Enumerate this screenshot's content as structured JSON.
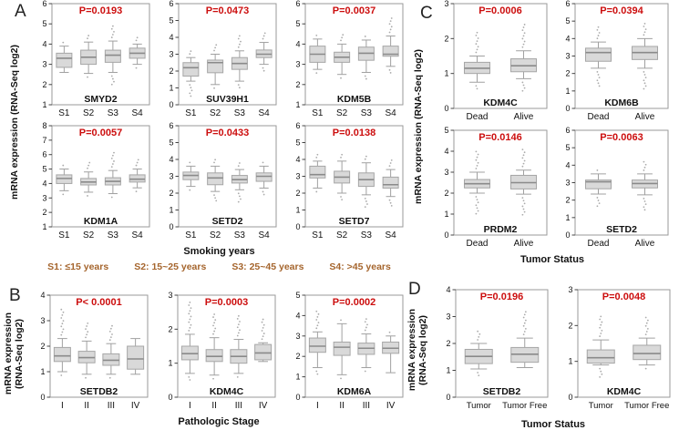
{
  "colors": {
    "p_value": "#cc0e0e",
    "legend_text": "#a5652d",
    "box_fill": "#d9d9d9",
    "box_stroke": "#a6a6a6",
    "median": "#8a8a8a",
    "whisker": "#a0a0a0",
    "outlier": "#ababab",
    "frame": "#9a9a9a",
    "tick": "#444444",
    "text": "#111111"
  },
  "panels": {
    "A": {
      "label": "A",
      "ylabel": "mRNA expression (RNA-Seq log2)",
      "xlabel": "Smoking years"
    },
    "B": {
      "label": "B",
      "ylabel_line1": "mRNA expression",
      "ylabel_line2": "(RNA-Seq log2)",
      "xlabel": "Pathologic Stage"
    },
    "C": {
      "label": "C",
      "ylabel": "mRNA expression (RNA-Seq log2)",
      "xlabel": "Tumor Status"
    },
    "D": {
      "label": "D",
      "ylabel_line1": "mRNA expression",
      "ylabel_line2": "(RNA-Seq log2)",
      "xlabel": "Tumor Status"
    }
  },
  "legend": {
    "items": [
      "S1: ≤15 years",
      "S2: 15~25 years",
      "S3: 25~45 years",
      "S4: >45 years"
    ]
  },
  "chart_data": [
    {
      "type": "box",
      "panel": "A",
      "gene": "SMYD2",
      "p_label": "P=0.0193",
      "ylim": [
        1,
        6
      ],
      "categories": [
        "S1",
        "S2",
        "S3",
        "S4"
      ],
      "boxes": [
        {
          "whisker_low": 2.6,
          "q1": 2.85,
          "median": 3.3,
          "q3": 3.55,
          "whisker_high": 3.9,
          "out_hi": 4.15,
          "out_lo": null
        },
        {
          "whisker_low": 2.55,
          "q1": 3.0,
          "median": 3.35,
          "q3": 3.7,
          "whisker_high": 4.1,
          "out_hi": 4.45,
          "out_lo": 2.45
        },
        {
          "whisker_low": 2.6,
          "q1": 3.1,
          "median": 3.45,
          "q3": 3.7,
          "whisker_high": 4.15,
          "out_hi": 4.9,
          "out_lo": 2.0
        },
        {
          "whisker_low": 3.0,
          "q1": 3.3,
          "median": 3.55,
          "q3": 3.8,
          "whisker_high": 4.0,
          "out_hi": 4.35,
          "out_lo": 2.8
        }
      ]
    },
    {
      "type": "box",
      "panel": "A",
      "gene": "SUV39H1",
      "p_label": "P=0.0473",
      "ylim": [
        0,
        6
      ],
      "categories": [
        "S1",
        "S2",
        "S3",
        "S4"
      ],
      "boxes": [
        {
          "whisker_low": 1.4,
          "q1": 1.7,
          "median": 2.2,
          "q3": 2.5,
          "whisker_high": 2.8,
          "out_hi": 3.2,
          "out_lo": 0.4
        },
        {
          "whisker_low": 1.2,
          "q1": 1.9,
          "median": 2.5,
          "q3": 2.65,
          "whisker_high": 3.0,
          "out_hi": 3.6,
          "out_lo": 0.9
        },
        {
          "whisker_low": 1.4,
          "q1": 2.1,
          "median": 2.45,
          "q3": 2.8,
          "whisker_high": 3.2,
          "out_hi": 4.1,
          "out_lo": 1.0
        },
        {
          "whisker_low": 2.4,
          "q1": 2.8,
          "median": 3.0,
          "q3": 3.25,
          "whisker_high": 3.7,
          "out_hi": 4.4,
          "out_lo": 1.9
        }
      ]
    },
    {
      "type": "box",
      "panel": "A",
      "gene": "KDM5B",
      "p_label": "P=0.0037",
      "ylim": [
        1,
        6
      ],
      "categories": [
        "S1",
        "S2",
        "S3",
        "S4"
      ],
      "boxes": [
        {
          "whisker_low": 2.75,
          "q1": 3.1,
          "median": 3.5,
          "q3": 3.9,
          "whisker_high": 4.25,
          "out_hi": 4.4,
          "out_lo": 2.7
        },
        {
          "whisker_low": 2.5,
          "q1": 3.1,
          "median": 3.35,
          "q3": 3.6,
          "whisker_high": 4.0,
          "out_hi": 4.5,
          "out_lo": 2.2
        },
        {
          "whisker_low": 2.6,
          "q1": 3.2,
          "median": 3.55,
          "q3": 3.85,
          "whisker_high": 4.2,
          "out_hi": 4.5,
          "out_lo": 2.2
        },
        {
          "whisker_low": 2.9,
          "q1": 3.4,
          "median": 3.5,
          "q3": 3.9,
          "whisker_high": 4.4,
          "out_hi": 5.3,
          "out_lo": 2.5
        }
      ]
    },
    {
      "type": "box",
      "panel": "A",
      "gene": "KDM1A",
      "p_label": "P=0.0057",
      "ylim": [
        1,
        8
      ],
      "categories": [
        "S1",
        "S2",
        "S3",
        "S4"
      ],
      "boxes": [
        {
          "whisker_low": 3.5,
          "q1": 4.0,
          "median": 4.35,
          "q3": 4.6,
          "whisker_high": 5.0,
          "out_hi": 5.4,
          "out_lo": 3.2
        },
        {
          "whisker_low": 3.4,
          "q1": 3.9,
          "median": 4.1,
          "q3": 4.35,
          "whisker_high": 4.8,
          "out_hi": 5.6,
          "out_lo": 3.1
        },
        {
          "whisker_low": 3.3,
          "q1": 3.9,
          "median": 4.15,
          "q3": 4.4,
          "whisker_high": 4.9,
          "out_hi": 6.3,
          "out_lo": 3.0
        },
        {
          "whisker_low": 3.7,
          "q1": 4.1,
          "median": 4.3,
          "q3": 4.6,
          "whisker_high": 5.0,
          "out_hi": 5.8,
          "out_lo": 3.5
        }
      ]
    },
    {
      "type": "box",
      "panel": "A",
      "gene": "SETD2",
      "p_label": "P=0.0433",
      "ylim": [
        0,
        6
      ],
      "categories": [
        "S1",
        "S2",
        "S3",
        "S4"
      ],
      "boxes": [
        {
          "whisker_low": 2.4,
          "q1": 2.8,
          "median": 3.05,
          "q3": 3.25,
          "whisker_high": 3.6,
          "out_hi": 3.9,
          "out_lo": 2.1
        },
        {
          "whisker_low": 2.1,
          "q1": 2.5,
          "median": 2.9,
          "q3": 3.2,
          "whisker_high": 3.6,
          "out_hi": 4.0,
          "out_lo": 1.5
        },
        {
          "whisker_low": 2.2,
          "q1": 2.6,
          "median": 2.8,
          "q3": 3.05,
          "whisker_high": 3.4,
          "out_hi": 3.8,
          "out_lo": 1.4
        },
        {
          "whisker_low": 2.3,
          "q1": 2.7,
          "median": 3.0,
          "q3": 3.2,
          "whisker_high": 3.6,
          "out_hi": 3.9,
          "out_lo": 1.8
        }
      ]
    },
    {
      "type": "box",
      "panel": "A",
      "gene": "SETD7",
      "p_label": "P=0.0138",
      "ylim": [
        0,
        6
      ],
      "categories": [
        "S1",
        "S2",
        "S3",
        "S4"
      ],
      "boxes": [
        {
          "whisker_low": 2.3,
          "q1": 2.9,
          "median": 3.1,
          "q3": 3.6,
          "whisker_high": 3.9,
          "out_hi": 4.3,
          "out_lo": 2.0
        },
        {
          "whisker_low": 2.0,
          "q1": 2.6,
          "median": 2.95,
          "q3": 3.3,
          "whisker_high": 3.9,
          "out_hi": 4.4,
          "out_lo": 1.5
        },
        {
          "whisker_low": 1.9,
          "q1": 2.4,
          "median": 2.8,
          "q3": 3.2,
          "whisker_high": 3.8,
          "out_hi": 4.3,
          "out_lo": 1.1
        },
        {
          "whisker_low": 1.8,
          "q1": 2.3,
          "median": 2.5,
          "q3": 2.95,
          "whisker_high": 3.4,
          "out_hi": 4.0,
          "out_lo": 1.2
        }
      ]
    },
    {
      "type": "box",
      "panel": "B",
      "gene": "SETDB2",
      "p_label": "P< 0.0001",
      "ylim": [
        0,
        4
      ],
      "categories": [
        "I",
        "II",
        "III",
        "IV"
      ],
      "boxes": [
        {
          "whisker_low": 1.0,
          "q1": 1.4,
          "median": 1.62,
          "q3": 1.95,
          "whisker_high": 2.3,
          "out_hi": 3.55,
          "out_lo": 0.8
        },
        {
          "whisker_low": 0.9,
          "q1": 1.35,
          "median": 1.55,
          "q3": 1.8,
          "whisker_high": 2.2,
          "out_hi": 2.9,
          "out_lo": 0.75
        },
        {
          "whisker_low": 0.9,
          "q1": 1.25,
          "median": 1.45,
          "q3": 1.7,
          "whisker_high": 2.1,
          "out_hi": 2.9,
          "out_lo": 0.8
        },
        {
          "whisker_low": 0.9,
          "q1": 1.1,
          "median": 1.5,
          "q3": 2.0,
          "whisker_high": 2.3,
          "out_hi": null,
          "out_lo": null
        }
      ]
    },
    {
      "type": "box",
      "panel": "B",
      "gene": "KDM4C",
      "p_label": "P=0.0003",
      "ylim": [
        0,
        3
      ],
      "categories": [
        "I",
        "II",
        "III",
        "IV"
      ],
      "boxes": [
        {
          "whisker_low": 0.7,
          "q1": 1.1,
          "median": 1.28,
          "q3": 1.5,
          "whisker_high": 1.85,
          "out_hi": 2.85,
          "out_lo": 0.5
        },
        {
          "whisker_low": 0.65,
          "q1": 1.05,
          "median": 1.2,
          "q3": 1.4,
          "whisker_high": 1.75,
          "out_hi": 2.5,
          "out_lo": 0.5
        },
        {
          "whisker_low": 0.7,
          "q1": 1.0,
          "median": 1.2,
          "q3": 1.4,
          "whisker_high": 1.7,
          "out_hi": 2.4,
          "out_lo": 0.55
        },
        {
          "whisker_low": 1.05,
          "q1": 1.1,
          "median": 1.3,
          "q3": 1.55,
          "whisker_high": 1.6,
          "out_hi": 2.3,
          "out_lo": null
        }
      ]
    },
    {
      "type": "box",
      "panel": "B",
      "gene": "KDM6A",
      "p_label": "P=0.0002",
      "ylim": [
        0,
        5
      ],
      "categories": [
        "I",
        "II",
        "III",
        "IV"
      ],
      "boxes": [
        {
          "whisker_low": 1.45,
          "q1": 2.2,
          "median": 2.5,
          "q3": 2.9,
          "whisker_high": 3.2,
          "out_hi": 4.3,
          "out_lo": 1.0
        },
        {
          "whisker_low": 1.1,
          "q1": 2.05,
          "median": 2.45,
          "q3": 2.7,
          "whisker_high": 3.6,
          "out_hi": 3.9,
          "out_lo": 0.9
        },
        {
          "whisker_low": 1.45,
          "q1": 2.1,
          "median": 2.4,
          "q3": 2.65,
          "whisker_high": 3.1,
          "out_hi": 3.9,
          "out_lo": 1.2
        },
        {
          "whisker_low": 1.2,
          "q1": 2.15,
          "median": 2.4,
          "q3": 2.7,
          "whisker_high": 3.0,
          "out_hi": 3.3,
          "out_lo": null
        }
      ]
    },
    {
      "type": "box",
      "panel": "C",
      "gene": "KDM4C",
      "p_label": "P=0.0006",
      "ylim": [
        0,
        3
      ],
      "categories": [
        "Dead",
        "Alive"
      ],
      "boxes": [
        {
          "whisker_low": 0.75,
          "q1": 1.0,
          "median": 1.15,
          "q3": 1.32,
          "whisker_high": 1.5,
          "out_hi": 2.2,
          "out_lo": 0.55
        },
        {
          "whisker_low": 0.85,
          "q1": 1.05,
          "median": 1.22,
          "q3": 1.42,
          "whisker_high": 1.65,
          "out_hi": 2.45,
          "out_lo": 0.5
        }
      ]
    },
    {
      "type": "box",
      "panel": "C",
      "gene": "KDM6B",
      "p_label": "P=0.0394",
      "ylim": [
        0,
        6
      ],
      "categories": [
        "Dead",
        "Alive"
      ],
      "boxes": [
        {
          "whisker_low": 2.3,
          "q1": 2.7,
          "median": 3.2,
          "q3": 3.45,
          "whisker_high": 3.8,
          "out_hi": 4.75,
          "out_lo": 1.2
        },
        {
          "whisker_low": 2.3,
          "q1": 2.8,
          "median": 3.2,
          "q3": 3.55,
          "whisker_high": 4.0,
          "out_hi": 5.0,
          "out_lo": 1.0
        }
      ]
    },
    {
      "type": "box",
      "panel": "C",
      "gene": "PRDM2",
      "p_label": "P=0.0146",
      "ylim": [
        0,
        5
      ],
      "categories": [
        "Dead",
        "Alive"
      ],
      "boxes": [
        {
          "whisker_low": 2.0,
          "q1": 2.25,
          "median": 2.45,
          "q3": 2.65,
          "whisker_high": 3.0,
          "out_hi": 4.1,
          "out_lo": 1.0
        },
        {
          "whisker_low": 1.95,
          "q1": 2.2,
          "median": 2.5,
          "q3": 2.85,
          "whisker_high": 3.1,
          "out_hi": 4.1,
          "out_lo": 0.85
        }
      ]
    },
    {
      "type": "box",
      "panel": "C",
      "gene": "SETD2",
      "p_label": "P=0.0063",
      "ylim": [
        0,
        6
      ],
      "categories": [
        "Dead",
        "Alive"
      ],
      "boxes": [
        {
          "whisker_low": 2.35,
          "q1": 2.65,
          "median": 3.05,
          "q3": 3.15,
          "whisker_high": 3.5,
          "out_hi": 3.7,
          "out_lo": 1.5
        },
        {
          "whisker_low": 2.3,
          "q1": 2.7,
          "median": 2.95,
          "q3": 3.15,
          "whisker_high": 3.5,
          "out_hi": 4.3,
          "out_lo": 1.35
        }
      ]
    },
    {
      "type": "box",
      "panel": "D",
      "gene": "SETDB2",
      "p_label": "P=0.0196",
      "ylim": [
        0,
        4
      ],
      "categories": [
        "Tumor",
        "Tumor Free"
      ],
      "boxes": [
        {
          "whisker_low": 1.05,
          "q1": 1.25,
          "median": 1.52,
          "q3": 1.78,
          "whisker_high": 2.0,
          "out_hi": 2.5,
          "out_lo": 0.78
        },
        {
          "whisker_low": 1.1,
          "q1": 1.3,
          "median": 1.6,
          "q3": 1.85,
          "whisker_high": 2.2,
          "out_hi": 3.2,
          "out_lo": null
        }
      ]
    },
    {
      "type": "box",
      "panel": "D",
      "gene": "KDM4C",
      "p_label": "P=0.0048",
      "ylim": [
        0,
        3
      ],
      "categories": [
        "Tumor",
        "Tumor Free"
      ],
      "boxes": [
        {
          "whisker_low": 0.9,
          "q1": 0.95,
          "median": 1.1,
          "q3": 1.32,
          "whisker_high": 1.6,
          "out_hi": 2.3,
          "out_lo": 0.55
        },
        {
          "whisker_low": 0.9,
          "q1": 1.05,
          "median": 1.22,
          "q3": 1.45,
          "whisker_high": 1.65,
          "out_hi": 2.3,
          "out_lo": 0.8
        }
      ]
    }
  ]
}
